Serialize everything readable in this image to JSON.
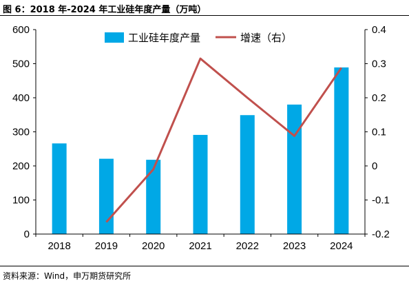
{
  "header": {
    "title": "图 6：2018 年-2024 年工业硅年度产量（万吨）"
  },
  "footer": {
    "source": "资料来源：Wind，申万期货研究所"
  },
  "chart_data": {
    "type": "bar",
    "categories": [
      "2018",
      "2019",
      "2020",
      "2021",
      "2022",
      "2023",
      "2024"
    ],
    "series": [
      {
        "name": "工业硅年度产量",
        "type": "bar",
        "axis": "left",
        "values": [
          266,
          221,
          218,
          291,
          349,
          380,
          489
        ],
        "color": "#00A8E6"
      },
      {
        "name": "增速（右）",
        "type": "line",
        "axis": "right",
        "values": [
          null,
          -0.165,
          -0.01,
          0.315,
          0.2,
          0.088,
          0.288
        ],
        "color": "#C0504D"
      }
    ],
    "y_left": {
      "min": 0,
      "max": 600,
      "ticks": [
        0,
        100,
        200,
        300,
        400,
        500,
        600
      ]
    },
    "y_right": {
      "min": -0.2,
      "max": 0.4,
      "ticks": [
        -0.2,
        -0.1,
        0,
        0.1,
        0.2,
        0.3,
        0.4
      ],
      "tick_labels": [
        "-0.2",
        "-0.1",
        "0",
        "0.1",
        "0.2",
        "0.3",
        "0.4"
      ]
    },
    "legend": {
      "position": "top-center"
    },
    "grid": false
  }
}
